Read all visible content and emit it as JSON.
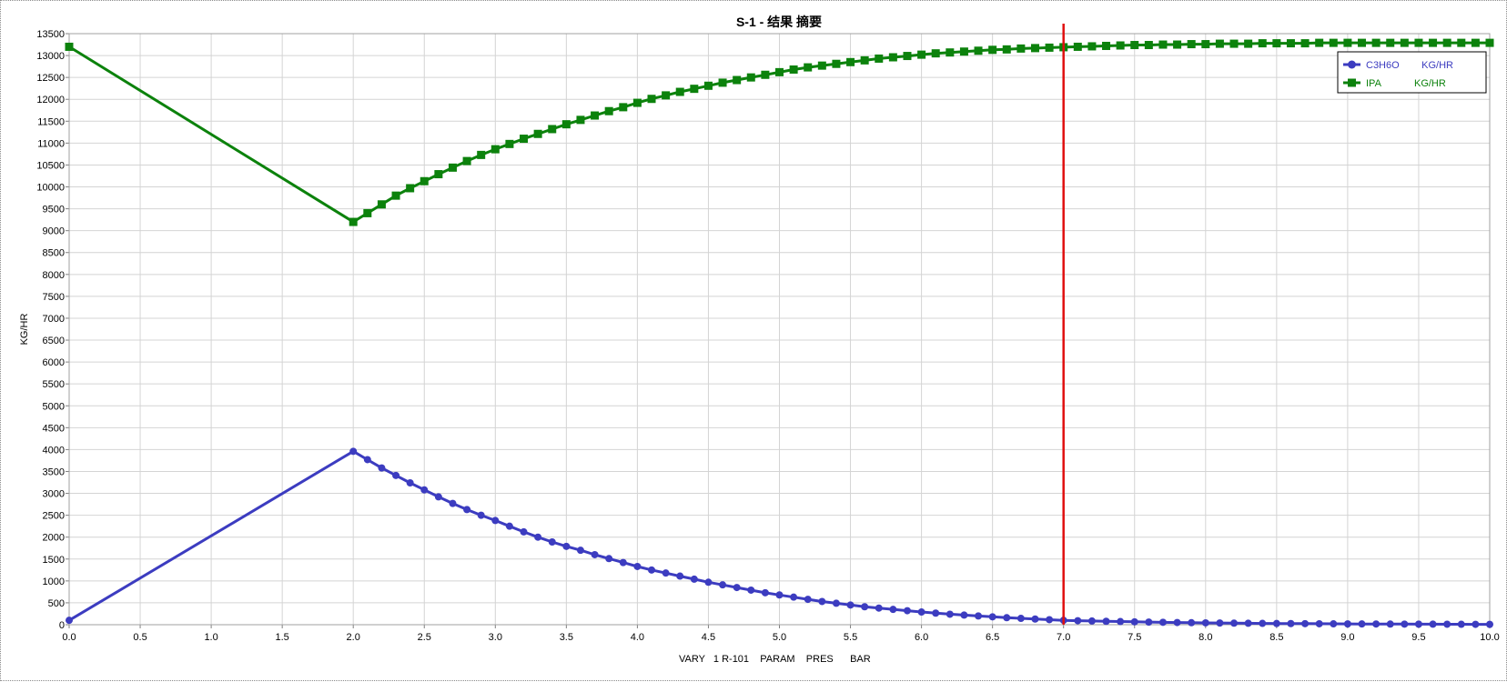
{
  "chart_data": {
    "type": "line",
    "title": "S-1 - 结果 摘要",
    "xlabel": "VARY   1 R-101    PARAM    PRES      BAR",
    "ylabel": "KG/HR",
    "xlim": [
      0,
      10
    ],
    "ylim": [
      0,
      13500
    ],
    "x_ticks": [
      "0.0",
      "0.5",
      "1.0",
      "1.5",
      "2.0",
      "2.5",
      "3.0",
      "3.5",
      "4.0",
      "4.5",
      "5.0",
      "5.5",
      "6.0",
      "6.5",
      "7.0",
      "7.5",
      "8.0",
      "8.5",
      "9.0",
      "9.5",
      "10.0"
    ],
    "y_ticks": [
      "0",
      "500",
      "1000",
      "1500",
      "2000",
      "2500",
      "3000",
      "3500",
      "4000",
      "4500",
      "5000",
      "5500",
      "6000",
      "6500",
      "7000",
      "7500",
      "8000",
      "8500",
      "9000",
      "9500",
      "10000",
      "10500",
      "11000",
      "11500",
      "12000",
      "12500",
      "13000",
      "13500"
    ],
    "grid": true,
    "legend_position": "top-right",
    "x": [
      0.0,
      2.0,
      2.1,
      2.2,
      2.3,
      2.4,
      2.5,
      2.6,
      2.7,
      2.8,
      2.9,
      3.0,
      3.1,
      3.2,
      3.3,
      3.4,
      3.5,
      3.6,
      3.7,
      3.8,
      3.9,
      4.0,
      4.1,
      4.2,
      4.3,
      4.4,
      4.5,
      4.6,
      4.7,
      4.8,
      4.9,
      5.0,
      5.1,
      5.2,
      5.3,
      5.4,
      5.5,
      5.6,
      5.7,
      5.8,
      5.9,
      6.0,
      6.1,
      6.2,
      6.3,
      6.4,
      6.5,
      6.6,
      6.7,
      6.8,
      6.9,
      7.0,
      7.1,
      7.2,
      7.3,
      7.4,
      7.5,
      7.6,
      7.7,
      7.8,
      7.9,
      8.0,
      8.1,
      8.2,
      8.3,
      8.4,
      8.5,
      8.6,
      8.7,
      8.8,
      8.9,
      9.0,
      9.1,
      9.2,
      9.3,
      9.4,
      9.5,
      9.6,
      9.7,
      9.8,
      9.9,
      10.0
    ],
    "series": [
      {
        "name": "C3H6O        KG/HR",
        "color": "#3c3cc0",
        "marker": "circle",
        "values": [
          100,
          3960,
          3770,
          3580,
          3410,
          3240,
          3080,
          2920,
          2770,
          2630,
          2500,
          2380,
          2250,
          2120,
          2000,
          1890,
          1790,
          1700,
          1600,
          1510,
          1420,
          1330,
          1250,
          1180,
          1110,
          1040,
          970,
          910,
          850,
          790,
          730,
          680,
          630,
          580,
          530,
          490,
          450,
          410,
          380,
          350,
          320,
          290,
          265,
          240,
          220,
          200,
          180,
          160,
          145,
          130,
          115,
          100,
          92,
          85,
          78,
          72,
          66,
          60,
          55,
          50,
          46,
          42,
          39,
          36,
          33,
          30,
          28,
          26,
          24,
          22,
          20,
          18,
          17,
          16,
          15,
          14,
          13,
          12,
          11,
          10,
          9,
          8
        ]
      },
      {
        "name": "IPA            KG/HR",
        "color": "#0c820c",
        "marker": "square",
        "values": [
          13200,
          9200,
          9400,
          9600,
          9800,
          9970,
          10130,
          10290,
          10440,
          10590,
          10730,
          10860,
          10980,
          11100,
          11210,
          11320,
          11430,
          11530,
          11630,
          11730,
          11820,
          11920,
          12010,
          12090,
          12170,
          12240,
          12310,
          12380,
          12440,
          12500,
          12560,
          12620,
          12680,
          12730,
          12770,
          12810,
          12850,
          12890,
          12930,
          12960,
          12990,
          13020,
          13050,
          13070,
          13090,
          13110,
          13130,
          13140,
          13160,
          13170,
          13180,
          13190,
          13200,
          13210,
          13220,
          13230,
          13240,
          13240,
          13250,
          13250,
          13260,
          13260,
          13270,
          13270,
          13270,
          13280,
          13280,
          13280,
          13280,
          13290,
          13290,
          13290,
          13290,
          13290,
          13290,
          13290,
          13290,
          13290,
          13290,
          13290,
          13290,
          13290
        ]
      }
    ],
    "vertical_marker": {
      "x": 7.0,
      "color": "#e01010"
    }
  }
}
